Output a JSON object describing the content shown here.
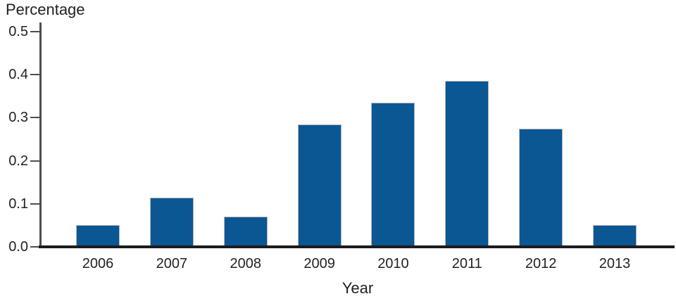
{
  "figure": {
    "background": "#ffffff"
  },
  "chart_data": {
    "type": "bar",
    "title": "",
    "ylabel": "Percentage",
    "xlabel": "Year",
    "categories": [
      "2006",
      "2007",
      "2008",
      "2009",
      "2010",
      "2011",
      "2012",
      "2013"
    ],
    "values": [
      0.05,
      0.115,
      0.07,
      0.285,
      0.335,
      0.385,
      0.275,
      0.05
    ],
    "ylim": [
      0,
      0.5
    ],
    "ytick_labels": [
      "0.0",
      "0.1",
      "0.2",
      "0.3",
      "0.4",
      "0.5"
    ],
    "ytick_values": [
      0,
      0.1,
      0.2,
      0.3,
      0.4,
      0.5
    ],
    "grid": false,
    "legend": null,
    "bar_color": "#0a5794",
    "bar_border_color": "#b6b6be",
    "baseline_color": "#1c1c1f",
    "axis_color": "#4d4d52",
    "text_color": "#231f20"
  }
}
